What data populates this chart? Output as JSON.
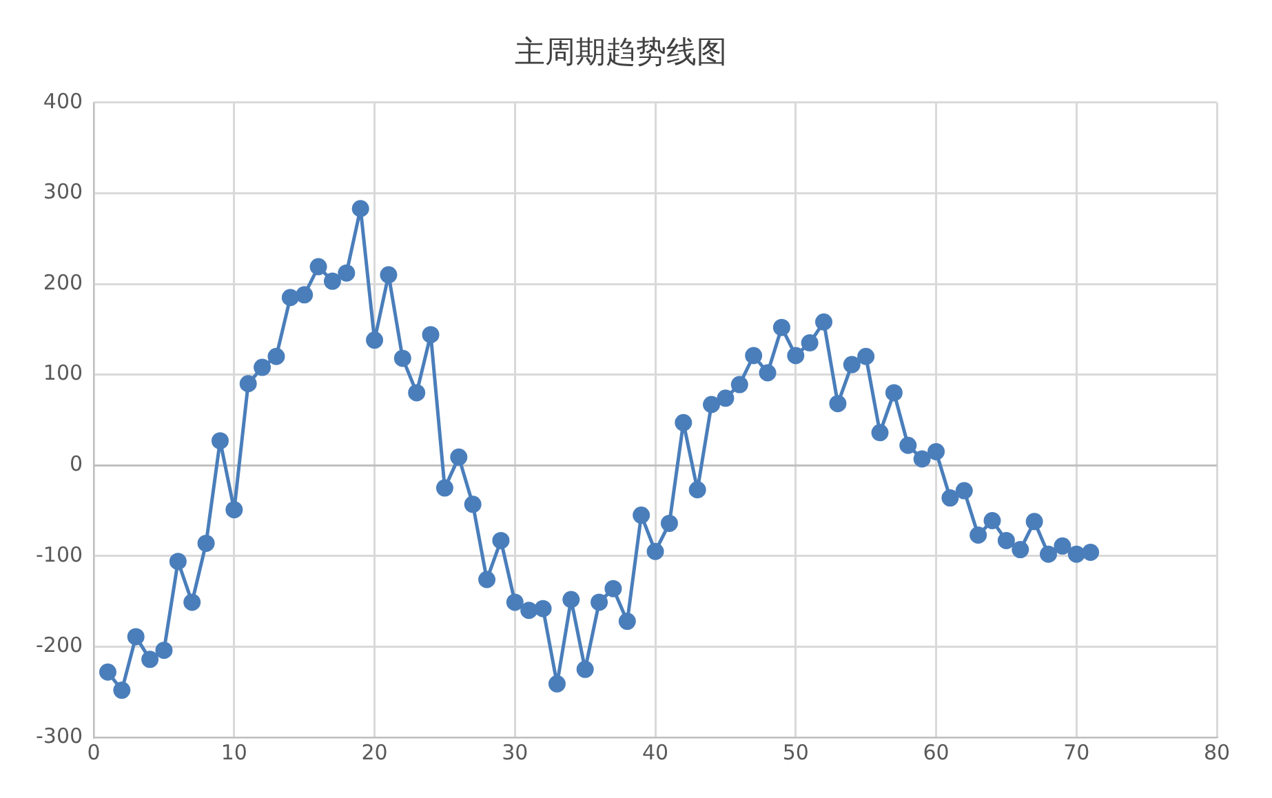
{
  "chart_data": {
    "type": "line",
    "title": "主周期趋势线图",
    "x": [
      1,
      2,
      3,
      4,
      5,
      6,
      7,
      8,
      9,
      10,
      11,
      12,
      13,
      14,
      15,
      16,
      17,
      18,
      19,
      20,
      21,
      22,
      23,
      24,
      25,
      26,
      27,
      28,
      29,
      30,
      31,
      32,
      33,
      34,
      35,
      36,
      37,
      38,
      39,
      40,
      41,
      42,
      43,
      44,
      45,
      46,
      47,
      48,
      49,
      50,
      51,
      52,
      53,
      54,
      55,
      56,
      57,
      58,
      59,
      60,
      61,
      62,
      63,
      64,
      65,
      66,
      67,
      68,
      69,
      70,
      71
    ],
    "series": [
      {
        "color": "#4a7ebb",
        "values": [
          -228,
          -248,
          -189,
          -214,
          -204,
          -106,
          -151,
          -86,
          27,
          -49,
          90,
          108,
          120,
          185,
          188,
          219,
          203,
          212,
          283,
          138,
          210,
          118,
          80,
          144,
          -25,
          9,
          -43,
          -126,
          -83,
          -151,
          -160,
          -158,
          -241,
          -148,
          -225,
          -151,
          -136,
          -172,
          -55,
          -95,
          -64,
          47,
          -27,
          67,
          74,
          89,
          121,
          102,
          152,
          121,
          135,
          158,
          68,
          111,
          120,
          36,
          80,
          22,
          7,
          15,
          -36,
          -28,
          -77,
          -61,
          -83,
          -93,
          -62,
          -98,
          -89,
          -98,
          -96
        ]
      }
    ],
    "xlim": [
      0,
      80
    ],
    "xticks": [
      0,
      10,
      20,
      30,
      40,
      50,
      60,
      70,
      80
    ],
    "ylim": [
      -300,
      400
    ],
    "yticks": [
      -300,
      -200,
      -100,
      0,
      100,
      200,
      300,
      400
    ],
    "grid": true,
    "legend": false,
    "marker": "circle",
    "line_style": "solid"
  }
}
